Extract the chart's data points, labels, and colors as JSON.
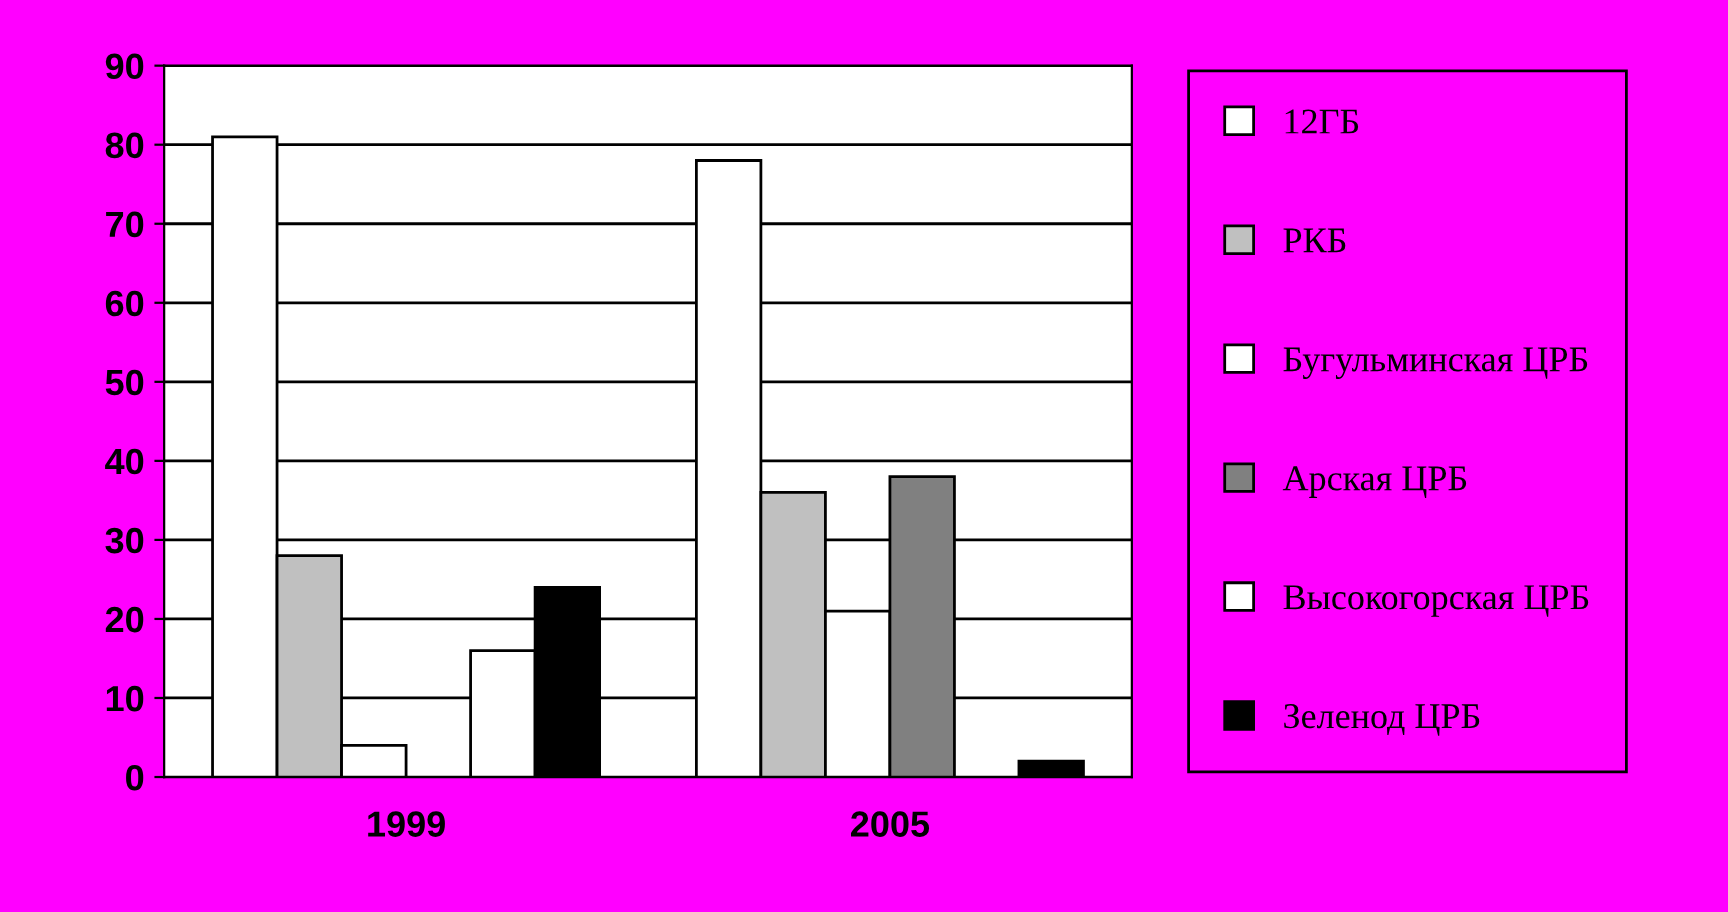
{
  "chart_data": {
    "type": "bar",
    "categories": [
      "1999",
      "2005"
    ],
    "series": [
      {
        "name": "12ГБ",
        "color": "#ffffff",
        "values": [
          81,
          78
        ]
      },
      {
        "name": "РКБ",
        "color": "#c0c0c0",
        "values": [
          28,
          36
        ]
      },
      {
        "name": "Бугульминская ЦРБ",
        "color": "#ffffff",
        "values": [
          4,
          21
        ]
      },
      {
        "name": "Арская ЦРБ",
        "color": "#808080",
        "values": [
          0,
          38
        ]
      },
      {
        "name": "Высокогорская ЦРБ",
        "color": "#ffffff",
        "values": [
          16,
          0
        ]
      },
      {
        "name": "Зеленод ЦРБ",
        "color": "#000000",
        "values": [
          24,
          2
        ]
      }
    ],
    "ylim": [
      0,
      90
    ],
    "yticks": [
      0,
      10,
      20,
      30,
      40,
      50,
      60,
      70,
      80,
      90
    ],
    "grid": "y",
    "legend": "right"
  }
}
